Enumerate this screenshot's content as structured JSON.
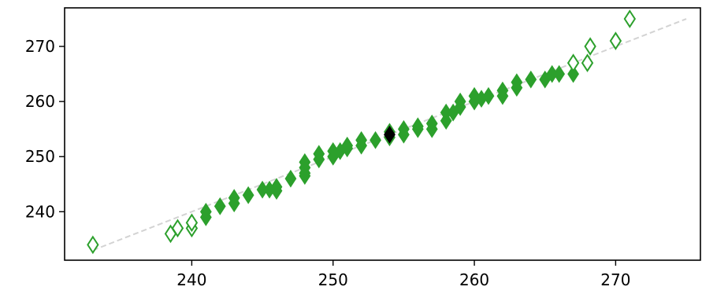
{
  "chart_data": {
    "type": "scatter",
    "title": "",
    "xlabel": "",
    "ylabel": "",
    "xlim": [
      231,
      276
    ],
    "ylim": [
      231.2,
      277
    ],
    "x_ticks": [
      240,
      250,
      260,
      270
    ],
    "y_ticks": [
      240,
      250,
      260,
      270
    ],
    "grid": false,
    "legend": "none",
    "marker": "diamond",
    "reference_line": {
      "x": [
        233,
        275
      ],
      "y": [
        233,
        275
      ],
      "color": "#d3d3d3",
      "style": "dashed"
    },
    "series": [
      {
        "style": "filled",
        "color": "#2ca02c",
        "points": [
          [
            241,
            239
          ],
          [
            241,
            240
          ],
          [
            242,
            241
          ],
          [
            243,
            241.5
          ],
          [
            243,
            242.5
          ],
          [
            244,
            243
          ],
          [
            245,
            244
          ],
          [
            245.5,
            244
          ],
          [
            246,
            244.5
          ],
          [
            246,
            243.8
          ],
          [
            247,
            246
          ],
          [
            248,
            246.5
          ],
          [
            248,
            247
          ],
          [
            248,
            248
          ],
          [
            248,
            249
          ],
          [
            249,
            249.5
          ],
          [
            249,
            250.5
          ],
          [
            250,
            250
          ],
          [
            250,
            251
          ],
          [
            250.5,
            251
          ],
          [
            251,
            251.5
          ],
          [
            251,
            252
          ],
          [
            252,
            252
          ],
          [
            252,
            253
          ],
          [
            253,
            253
          ],
          [
            254,
            253.5
          ],
          [
            254,
            254.5
          ],
          [
            255,
            254
          ],
          [
            255,
            255
          ],
          [
            256,
            255
          ],
          [
            256,
            255.5
          ],
          [
            257,
            255
          ],
          [
            257,
            256
          ],
          [
            258,
            256.5
          ],
          [
            258,
            258
          ],
          [
            258.5,
            258
          ],
          [
            259,
            259
          ],
          [
            259,
            260
          ],
          [
            260,
            260
          ],
          [
            260,
            261
          ],
          [
            260.5,
            260.5
          ],
          [
            261,
            261
          ],
          [
            262,
            261
          ],
          [
            262,
            262
          ],
          [
            263,
            262.5
          ],
          [
            263,
            263.5
          ],
          [
            264,
            264
          ],
          [
            265,
            264
          ],
          [
            265.5,
            265
          ],
          [
            266,
            265
          ],
          [
            267,
            265
          ]
        ]
      },
      {
        "style": "hollow",
        "color": "#2ca02c",
        "points": [
          [
            233,
            234
          ],
          [
            238.5,
            236
          ],
          [
            239,
            237
          ],
          [
            240,
            237
          ],
          [
            240,
            238
          ],
          [
            267,
            267
          ],
          [
            268,
            267
          ],
          [
            268.2,
            270
          ],
          [
            270,
            271
          ],
          [
            271,
            275
          ]
        ]
      },
      {
        "style": "highlight",
        "color": "#000000",
        "points": [
          [
            254,
            254
          ]
        ]
      }
    ]
  }
}
